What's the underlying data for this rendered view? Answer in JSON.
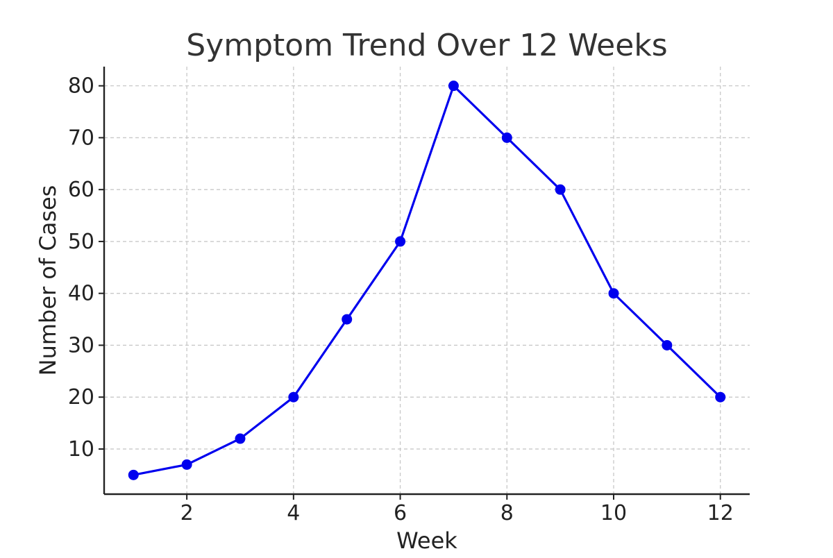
{
  "chart_data": {
    "type": "line",
    "title": "Symptom Trend Over 12 Weeks",
    "xlabel": "Week",
    "ylabel": "Number of Cases",
    "x": [
      1,
      2,
      3,
      4,
      5,
      6,
      7,
      8,
      9,
      10,
      11,
      12
    ],
    "series": [
      {
        "values": [
          5,
          7,
          12,
          20,
          35,
          50,
          80,
          70,
          60,
          40,
          30,
          20
        ],
        "color": "#0000ee",
        "marker": "circle"
      }
    ],
    "xlim": [
      0.45,
      12.55
    ],
    "ylim": [
      1.3,
      83.7
    ],
    "xticks": [
      2,
      4,
      6,
      8,
      10,
      12
    ],
    "yticks": [
      10,
      20,
      30,
      40,
      50,
      60,
      70,
      80
    ],
    "grid": true,
    "grid_style": "dashed"
  }
}
